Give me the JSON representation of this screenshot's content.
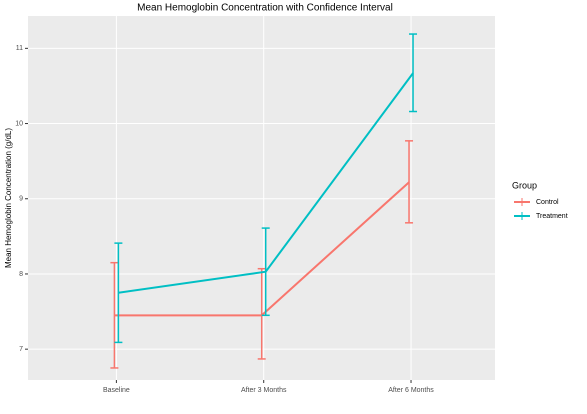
{
  "chart_data": {
    "type": "line",
    "title": "Mean Hemoglobin Concentration with Confidence Interval",
    "y_label": "Mean Hemoglobin Concentration (g/dL)",
    "legend_title": "Group",
    "legend_position": "right",
    "categories": [
      "Baseline",
      "After 3 Months",
      "After 6 Months"
    ],
    "series": [
      {
        "name": "Control",
        "color": "#F8766D",
        "values": [
          7.45,
          7.45,
          9.22
        ],
        "lower": [
          6.75,
          6.87,
          8.68
        ],
        "upper": [
          8.15,
          8.07,
          9.77
        ]
      },
      {
        "name": "Treatment",
        "color": "#00BFC4",
        "values": [
          7.75,
          8.03,
          10.67
        ],
        "lower": [
          7.09,
          7.45,
          10.16
        ],
        "upper": [
          8.41,
          8.61,
          11.19
        ]
      }
    ],
    "ylim": [
      6.59,
      11.43
    ],
    "yticks": [
      7,
      8,
      9,
      10,
      11
    ],
    "grid": true
  }
}
